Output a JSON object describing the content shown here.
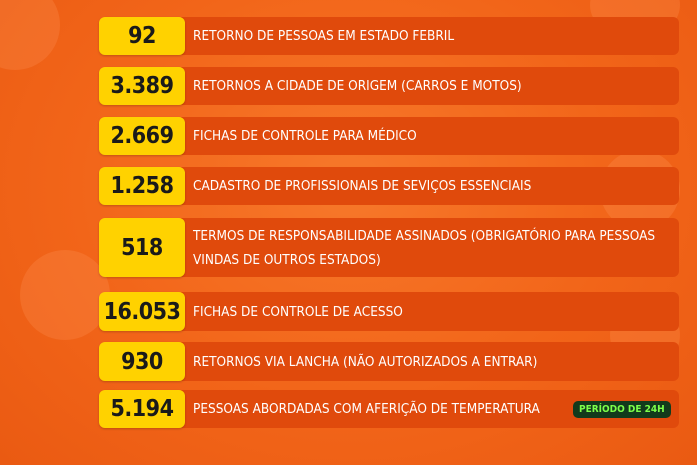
{
  "items": [
    {
      "value": "92",
      "label": "RETORNO DE PESSOAS EM ESTADO FEBRIL"
    },
    {
      "value": "3.389",
      "label": "RETORNOS A CIDADE DE ORIGEM (CARROS E MOTOS)"
    },
    {
      "value": "2.669",
      "label": "FICHAS DE CONTROLE PARA MÉDICO"
    },
    {
      "value": "1.258",
      "label": "CADASTRO DE PROFISSIONAIS DE SEVIÇOS ESSENCIAIS"
    },
    {
      "value": "518",
      "label": "TERMOS DE RESPONSABILIDADE ASSINADOS (OBRIGATÓRIO PARA PESSOAS VINDAS DE OUTROS ESTADOS)"
    },
    {
      "value": "16.053",
      "label": "FICHAS DE CONTROLE DE ACESSO"
    },
    {
      "value": "930",
      "label": "RETORNOS VIA LANCHA (NÃO AUTORIZADOS A ENTRAR)"
    },
    {
      "value": "5.194",
      "label": "PESSOAS ABORDADAS COM AFERIÇÃO DE TEMPERATURA"
    }
  ],
  "badge": "PERÍODO DE 24H",
  "colors": {
    "background": "#f26519",
    "bar": "#e04a0c",
    "number_box": "#ffd200",
    "badge_bg": "#123a1c",
    "badge_text": "#7dff4a"
  }
}
